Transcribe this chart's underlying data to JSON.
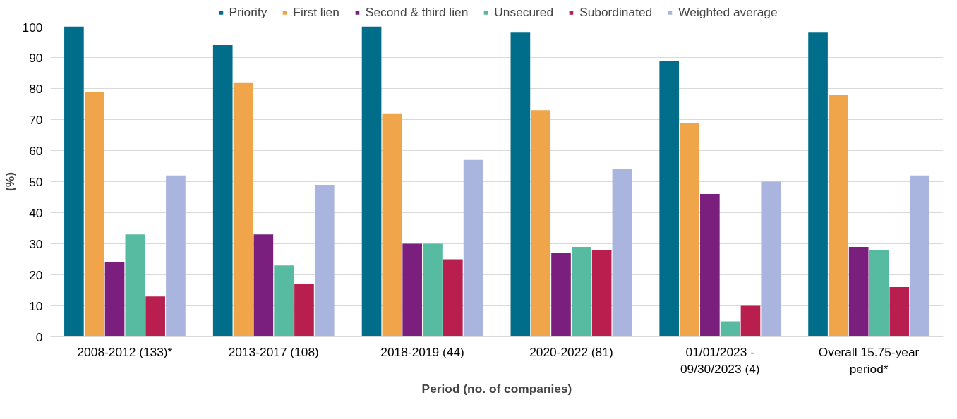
{
  "chart_data": {
    "type": "bar",
    "xlabel": "Period (no. of companies)",
    "ylabel": "(%)",
    "categories": [
      "2008-2012 (133)*",
      "2013-2017 (108)",
      "2018-2019 (44)",
      "2020-2022 (81)",
      "01/01/2023 - 09/30/2023 (4)",
      "Overall 15.75-year period*"
    ],
    "series": [
      {
        "name": "Priority",
        "color": "#006e8a",
        "values": [
          100,
          94,
          100,
          98,
          89,
          98
        ]
      },
      {
        "name": "First lien",
        "color": "#f0a54a",
        "values": [
          79,
          82,
          72,
          73,
          69,
          78
        ]
      },
      {
        "name": "Second & third lien",
        "color": "#7a1f7e",
        "values": [
          24,
          33,
          30,
          27,
          46,
          29
        ]
      },
      {
        "name": "Unsecured",
        "color": "#56bba0",
        "values": [
          33,
          23,
          30,
          29,
          5,
          28
        ]
      },
      {
        "name": "Subordinated",
        "color": "#b81f4e",
        "values": [
          13,
          17,
          25,
          28,
          10,
          16
        ]
      },
      {
        "name": "Weighted average",
        "color": "#a9b5de",
        "values": [
          52,
          49,
          57,
          54,
          50,
          52
        ]
      }
    ],
    "ylim": [
      0,
      100
    ],
    "yticks": [
      0,
      10,
      20,
      30,
      40,
      50,
      60,
      70,
      80,
      90,
      100
    ],
    "grid": "y",
    "legend": "top"
  }
}
